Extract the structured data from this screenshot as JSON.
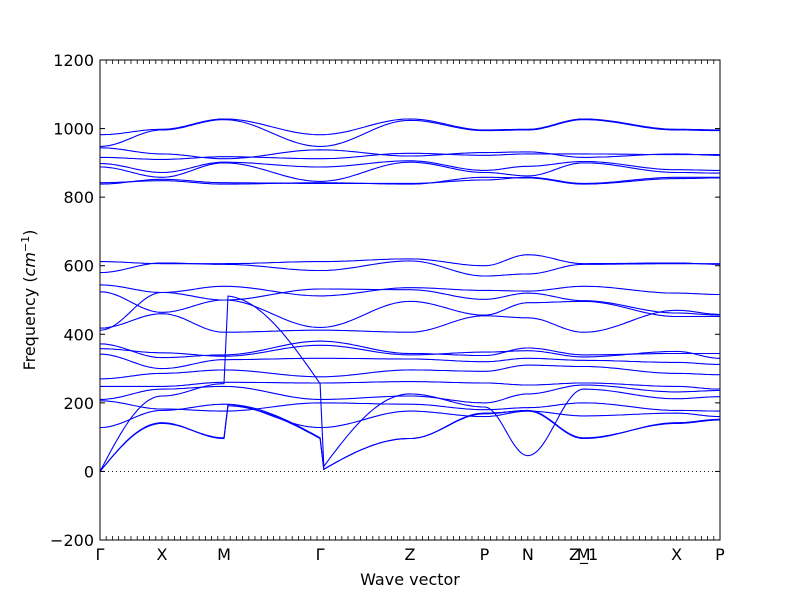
{
  "chart_data": {
    "type": "line",
    "title": "",
    "xlabel": "Wave vector",
    "ylabel": "Frequency",
    "ylabel_unit": "cm",
    "ylabel_exponent": "−1",
    "ylim": [
      -200,
      1200
    ],
    "yticks": [
      -200,
      0,
      200,
      400,
      600,
      800,
      1000,
      1200
    ],
    "xlim": [
      0,
      10
    ],
    "high_symmetry_points": [
      {
        "label": "Γ",
        "x": 0
      },
      {
        "label": "X",
        "x": 1
      },
      {
        "label": "M",
        "x": 2
      },
      {
        "label": "Γ",
        "x": 3.55
      },
      {
        "label": "Z",
        "x": 5
      },
      {
        "label": "P",
        "x": 6.2
      },
      {
        "label": "N",
        "x": 6.9
      },
      {
        "label": "Z_1",
        "x": 7.8
      },
      {
        "label": "M",
        "x": 7.8
      },
      {
        "label": "X",
        "x": 9.3
      },
      {
        "label": "P",
        "x": 10
      }
    ],
    "zero_line": true,
    "line_color": "#0000ff",
    "series": [
      {
        "x": [
          0,
          1,
          2,
          3.55,
          5,
          6.2,
          6.9,
          7.8,
          9.3,
          10
        ],
        "values": [
          982,
          998,
          1028,
          982,
          1028,
          996,
          998,
          1028,
          998,
          996
        ]
      },
      {
        "x": [
          0,
          1,
          2,
          3.55,
          5,
          6.2,
          6.9,
          7.8,
          9.3,
          10
        ],
        "values": [
          948,
          996,
          1026,
          948,
          1024,
          994,
          996,
          1026,
          996,
          994
        ]
      },
      {
        "x": [
          0,
          1,
          2,
          3.55,
          5,
          6.2,
          6.9,
          7.8,
          9.3,
          10
        ],
        "values": [
          944,
          926,
          912,
          938,
          920,
          930,
          932,
          916,
          926,
          922
        ]
      },
      {
        "x": [
          0,
          1,
          2,
          3.55,
          5,
          6.2,
          6.9,
          7.8,
          9.3,
          10
        ],
        "values": [
          916,
          910,
          918,
          912,
          928,
          922,
          926,
          926,
          924,
          924
        ]
      },
      {
        "x": [
          0,
          1,
          2,
          3.55,
          5,
          6.2,
          6.9,
          7.8,
          9.3,
          10
        ],
        "values": [
          898,
          872,
          902,
          888,
          906,
          878,
          890,
          904,
          880,
          878
        ]
      },
      {
        "x": [
          0,
          1,
          2,
          3.55,
          5,
          6.2,
          6.9,
          7.8,
          9.3,
          10
        ],
        "values": [
          888,
          858,
          900,
          846,
          902,
          872,
          862,
          900,
          872,
          870
        ]
      },
      {
        "x": [
          0,
          1,
          2,
          3.55,
          5,
          6.2,
          6.9,
          7.8,
          9.3,
          10
        ],
        "values": [
          842,
          848,
          838,
          842,
          838,
          858,
          856,
          838,
          854,
          856
        ]
      },
      {
        "x": [
          0,
          1,
          2,
          3.55,
          5,
          6.2,
          6.9,
          7.8,
          9.3,
          10
        ],
        "values": [
          838,
          852,
          842,
          840,
          840,
          850,
          858,
          840,
          858,
          858
        ]
      },
      {
        "x": [
          0,
          1,
          2,
          3.55,
          5,
          6.2,
          6.9,
          7.8,
          9.3,
          10
        ],
        "values": [
          612,
          606,
          606,
          612,
          620,
          600,
          632,
          606,
          608,
          604
        ]
      },
      {
        "x": [
          0,
          1,
          2,
          3.55,
          5,
          6.2,
          6.9,
          7.8,
          9.3,
          10
        ],
        "values": [
          580,
          608,
          604,
          586,
          614,
          570,
          576,
          604,
          606,
          606
        ]
      },
      {
        "x": [
          0,
          1,
          2,
          3.55,
          5,
          6.2,
          6.9,
          7.8,
          9.3,
          10
        ],
        "values": [
          544,
          522,
          540,
          512,
          536,
          528,
          526,
          540,
          520,
          516
        ]
      },
      {
        "x": [
          0,
          1,
          2,
          3.55,
          5,
          6.2,
          6.9,
          7.8,
          9.3,
          10
        ],
        "values": [
          524,
          464,
          500,
          532,
          530,
          502,
          520,
          498,
          462,
          456
        ]
      },
      {
        "x": [
          0,
          1,
          2,
          3.55,
          5,
          6.2,
          6.9,
          7.8,
          9.3,
          10
        ],
        "values": [
          418,
          460,
          406,
          412,
          406,
          454,
          448,
          406,
          470,
          458
        ]
      },
      {
        "x": [
          0,
          1,
          2,
          3.55,
          5,
          6.2,
          6.9,
          7.8,
          9.3,
          10
        ],
        "values": [
          412,
          522,
          500,
          420,
          496,
          456,
          492,
          496,
          452,
          452
        ]
      },
      {
        "x": [
          0,
          1,
          2,
          3.55,
          5,
          6.2,
          6.9,
          7.8,
          9.3,
          10
        ],
        "values": [
          372,
          332,
          340,
          380,
          344,
          338,
          360,
          340,
          344,
          344
        ]
      },
      {
        "x": [
          0,
          1,
          2,
          3.55,
          5,
          6.2,
          6.9,
          7.8,
          9.3,
          10
        ],
        "values": [
          358,
          346,
          336,
          368,
          340,
          348,
          352,
          334,
          350,
          330
        ]
      },
      {
        "x": [
          0,
          1,
          2,
          3.55,
          5,
          6.2,
          6.9,
          7.8,
          9.3,
          10
        ],
        "values": [
          342,
          300,
          326,
          330,
          328,
          320,
          330,
          324,
          318,
          312
        ]
      },
      {
        "x": [
          0,
          1,
          2,
          3.55,
          5,
          6.2,
          6.9,
          7.8,
          9.3,
          10
        ],
        "values": [
          270,
          286,
          296,
          276,
          296,
          292,
          310,
          306,
          286,
          282
        ]
      },
      {
        "x": [
          0,
          1,
          2,
          3.55,
          5,
          6.2,
          6.9,
          7.8,
          9.3,
          10
        ],
        "values": [
          248,
          248,
          260,
          258,
          262,
          258,
          252,
          258,
          248,
          240
        ]
      },
      {
        "x": [
          0,
          1,
          2,
          3.55,
          5,
          6.2,
          6.9,
          7.8,
          9.3,
          10
        ],
        "values": [
          210,
          240,
          248,
          210,
          220,
          200,
          226,
          252,
          232,
          236
        ]
      },
      {
        "x": [
          0,
          1,
          2,
          3.55,
          5,
          6.2,
          6.9,
          7.8,
          9.3,
          10
        ],
        "values": [
          206,
          182,
          176,
          200,
          196,
          180,
          186,
          200,
          178,
          176
        ]
      },
      {
        "x": [
          0,
          1,
          2,
          3.55,
          5,
          6.2,
          6.9,
          7.8,
          9.3,
          10
        ],
        "values": [
          128,
          178,
          196,
          128,
          176,
          160,
          176,
          162,
          170,
          160
        ]
      },
      {
        "x": [
          0,
          1,
          2,
          3.55,
          5,
          6.2,
          6.9,
          7.8,
          9.3,
          10
        ],
        "values": [
          0,
          220,
          256,
          0,
          226,
          188,
          46,
          240,
          212,
          218
        ]
      },
      {
        "x": [
          0,
          1,
          2,
          3.55,
          5,
          6.2,
          6.9,
          7.8,
          9.3,
          10
        ],
        "values": [
          0,
          142,
          96,
          0,
          96,
          170,
          176,
          96,
          142,
          152
        ]
      },
      {
        "x": [
          0,
          1,
          2,
          3.55,
          5,
          6.2,
          6.9,
          7.8,
          9.3,
          10
        ],
        "values": [
          0,
          140,
          98,
          0,
          96,
          168,
          178,
          98,
          140,
          150
        ]
      }
    ]
  }
}
